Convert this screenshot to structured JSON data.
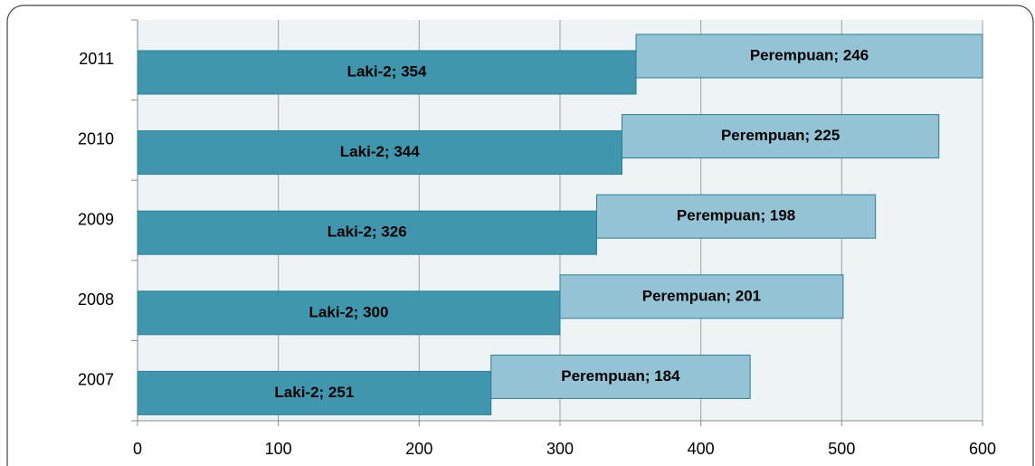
{
  "chart_data": {
    "type": "stacked-bar-horizontal",
    "categories": [
      "2007",
      "2008",
      "2009",
      "2010",
      "2011"
    ],
    "series": [
      {
        "name": "Laki-2",
        "color": "#4097ad",
        "values": [
          251,
          300,
          326,
          344,
          354
        ],
        "value_labels": [
          "Laki-2; 251",
          "Laki-2; 300",
          "Laki-2; 326",
          "Laki-2; 344",
          "Laki-2; 354"
        ]
      },
      {
        "name": "Perempuan",
        "color": "#93c3d5",
        "values": [
          184,
          201,
          198,
          225,
          246
        ],
        "value_labels": [
          "Perempuan; 184",
          "Perempuan; 201",
          "Perempuan; 198",
          "Perempuan; 225",
          "Perempuan; 246"
        ]
      }
    ],
    "xlim": [
      0,
      600
    ],
    "xticks": [
      0,
      100,
      200,
      300,
      400,
      500,
      600
    ],
    "grid": true
  }
}
